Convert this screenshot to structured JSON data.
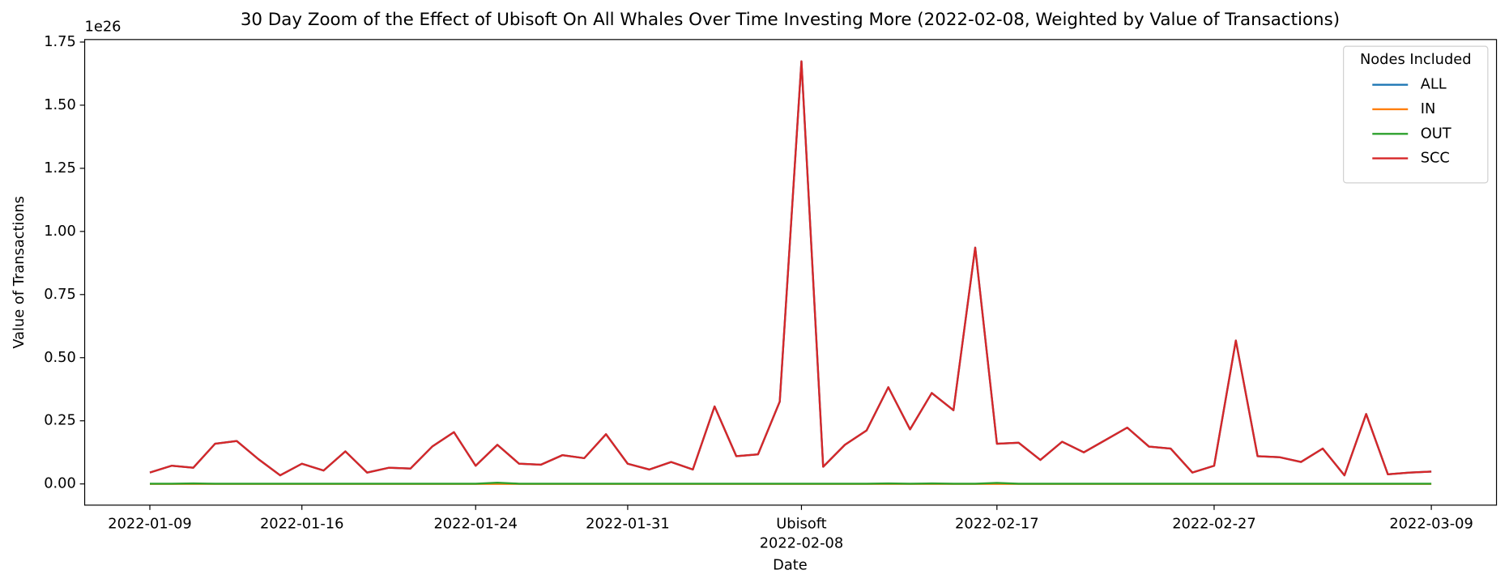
{
  "chart_data": {
    "type": "line",
    "title": "30 Day Zoom of the Effect of Ubisoft On All Whales Over Time Investing More (2022-02-08, Weighted by Value of Transactions)",
    "x_label": "Date",
    "y_label": "Value of Transactions",
    "y_offset_label": "1e26",
    "x": [
      "2022-01-09",
      "2022-01-10",
      "2022-01-11",
      "2022-01-12",
      "2022-01-13",
      "2022-01-14",
      "2022-01-15",
      "2022-01-16",
      "2022-01-17",
      "2022-01-18",
      "2022-01-19",
      "2022-01-20",
      "2022-01-21",
      "2022-01-22",
      "2022-01-23",
      "2022-01-24",
      "2022-01-25",
      "2022-01-26",
      "2022-01-27",
      "2022-01-28",
      "2022-01-29",
      "2022-01-30",
      "2022-01-31",
      "2022-02-01",
      "2022-02-02",
      "2022-02-03",
      "2022-02-04",
      "2022-02-05",
      "2022-02-06",
      "2022-02-07",
      "2022-02-08",
      "2022-02-09",
      "2022-02-10",
      "2022-02-11",
      "2022-02-12",
      "2022-02-13",
      "2022-02-14",
      "2022-02-15",
      "2022-02-16",
      "2022-02-17",
      "2022-02-18",
      "2022-02-19",
      "2022-02-20",
      "2022-02-21",
      "2022-02-22",
      "2022-02-23",
      "2022-02-24",
      "2022-02-25",
      "2022-02-26",
      "2022-02-27",
      "2022-02-28",
      "2022-03-01",
      "2022-03-02",
      "2022-03-03",
      "2022-03-04",
      "2022-03-05",
      "2022-03-06",
      "2022-03-07",
      "2022-03-08",
      "2022-03-09"
    ],
    "series": [
      {
        "name": "ALL",
        "color": "#1f77b4",
        "values": [
          0.045,
          0.072,
          0.064,
          0.159,
          0.17,
          0.098,
          0.034,
          0.08,
          0.053,
          0.129,
          0.045,
          0.064,
          0.061,
          0.148,
          0.205,
          0.072,
          0.155,
          0.08,
          0.076,
          0.114,
          0.102,
          0.197,
          0.08,
          0.057,
          0.087,
          0.057,
          0.307,
          0.11,
          0.117,
          0.326,
          1.674,
          0.068,
          0.155,
          0.212,
          0.383,
          0.216,
          0.36,
          0.292,
          0.936,
          0.159,
          0.163,
          0.095,
          0.167,
          0.125,
          0.174,
          0.223,
          0.148,
          0.14,
          0.045,
          0.072,
          0.568,
          0.11,
          0.106,
          0.087,
          0.14,
          0.034,
          0.277,
          0.038,
          0.045,
          0.049
        ]
      },
      {
        "name": "IN",
        "color": "#ff7f0e",
        "values": [
          0,
          0,
          0,
          0,
          0,
          0,
          0,
          0,
          0,
          0,
          0,
          0,
          0,
          0,
          0,
          0,
          0,
          0,
          0,
          0,
          0,
          0,
          0,
          0,
          0,
          0,
          0,
          0,
          0,
          0,
          0,
          0,
          0,
          0,
          0,
          0,
          0,
          0,
          0,
          0,
          0,
          0,
          0,
          0,
          0,
          0,
          0,
          0,
          0,
          0,
          0,
          0,
          0,
          0,
          0,
          0,
          0,
          0,
          0,
          0
        ]
      },
      {
        "name": "OUT",
        "color": "#2ca02c",
        "values": [
          0.001,
          0.001,
          0.002,
          0.001,
          0.001,
          0.001,
          0.001,
          0.001,
          0.001,
          0.001,
          0.001,
          0.001,
          0.001,
          0.001,
          0.001,
          0.001,
          0.005,
          0.001,
          0.001,
          0.001,
          0.001,
          0.001,
          0.001,
          0.001,
          0.001,
          0.001,
          0.001,
          0.001,
          0.001,
          0.001,
          0.001,
          0.001,
          0.001,
          0.001,
          0.002,
          0.001,
          0.002,
          0.001,
          0.001,
          0.004,
          0.001,
          0.001,
          0.001,
          0.001,
          0.001,
          0.001,
          0.001,
          0.001,
          0.001,
          0.001,
          0.001,
          0.001,
          0.001,
          0.001,
          0.001,
          0.001,
          0.001,
          0.001,
          0.001,
          0.001
        ]
      },
      {
        "name": "SCC",
        "color": "#d62728",
        "values": [
          0.045,
          0.072,
          0.064,
          0.159,
          0.17,
          0.098,
          0.034,
          0.08,
          0.053,
          0.129,
          0.045,
          0.064,
          0.061,
          0.148,
          0.205,
          0.072,
          0.155,
          0.08,
          0.076,
          0.114,
          0.102,
          0.197,
          0.08,
          0.057,
          0.087,
          0.057,
          0.307,
          0.11,
          0.117,
          0.326,
          1.674,
          0.068,
          0.155,
          0.212,
          0.383,
          0.216,
          0.36,
          0.292,
          0.936,
          0.159,
          0.163,
          0.095,
          0.167,
          0.125,
          0.174,
          0.223,
          0.148,
          0.14,
          0.045,
          0.072,
          0.568,
          0.11,
          0.106,
          0.087,
          0.14,
          0.034,
          0.277,
          0.038,
          0.045,
          0.049
        ]
      }
    ],
    "xlim": [
      "2022-01-06",
      "2022-03-12"
    ],
    "xticks": [
      "2022-01-09",
      "2022-01-16",
      "2022-01-24",
      "2022-01-31",
      "2022-02-08",
      "2022-02-17",
      "2022-02-27",
      "2022-03-09"
    ],
    "annotations": [
      {
        "x": "2022-02-08",
        "text": "Ubisoft"
      }
    ],
    "ylim": [
      -0.084,
      1.76
    ],
    "yticks": [
      {
        "value": 0,
        "label": "0.00"
      },
      {
        "value": 0.25,
        "label": "0.25"
      },
      {
        "value": 0.5,
        "label": "0.50"
      },
      {
        "value": 0.75,
        "label": "0.75"
      },
      {
        "value": 1,
        "label": "1.00"
      },
      {
        "value": 1.25,
        "label": "1.25"
      },
      {
        "value": 1.5,
        "label": "1.50"
      },
      {
        "value": 1.75,
        "label": "1.75"
      }
    ],
    "legend_title": "Nodes Included",
    "legend_position": "upper right",
    "grid": false
  }
}
